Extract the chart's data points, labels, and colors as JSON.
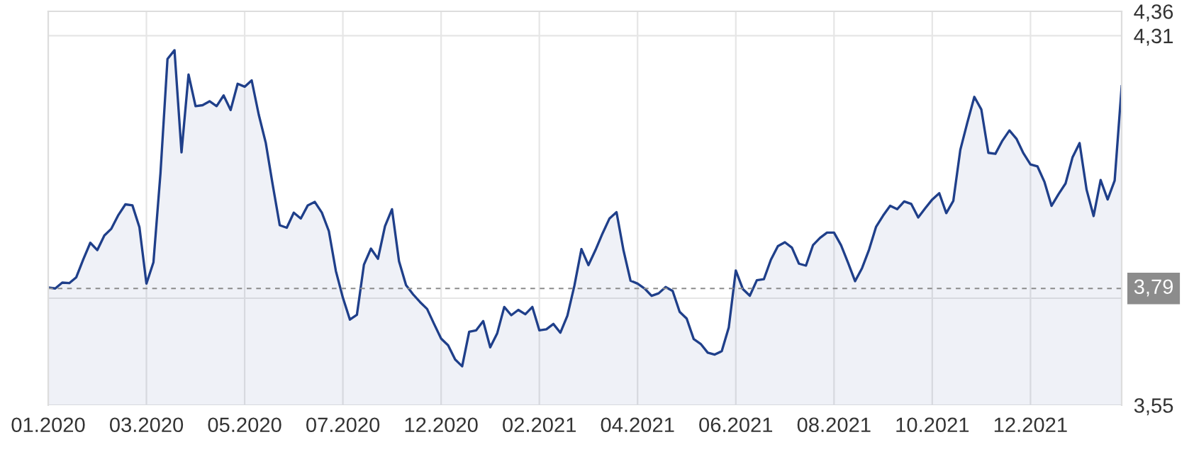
{
  "chart_data": {
    "type": "area",
    "categories": [
      "01.2020",
      null,
      null,
      null,
      null,
      null,
      null,
      null,
      null,
      null,
      null,
      null,
      null,
      null,
      "03.2020",
      null,
      null,
      null,
      null,
      null,
      null,
      null,
      null,
      null,
      null,
      null,
      null,
      null,
      "05.2020",
      null,
      null,
      null,
      null,
      null,
      null,
      null,
      null,
      null,
      null,
      null,
      null,
      null,
      "07.2020",
      null,
      null,
      null,
      null,
      null,
      null,
      null,
      null,
      null,
      null,
      null,
      null,
      null,
      "12.2020",
      null,
      null,
      null,
      null,
      null,
      null,
      null,
      null,
      null,
      null,
      null,
      null,
      null,
      "02.2021",
      null,
      null,
      null,
      null,
      null,
      null,
      null,
      null,
      null,
      null,
      null,
      null,
      null,
      "04.2021",
      null,
      null,
      null,
      null,
      null,
      null,
      null,
      null,
      null,
      null,
      null,
      null,
      null,
      "06.2021",
      null,
      null,
      null,
      null,
      null,
      null,
      null,
      null,
      null,
      null,
      null,
      null,
      null,
      "08.2021",
      null,
      null,
      null,
      null,
      null,
      null,
      null,
      null,
      null,
      null,
      null,
      null,
      null,
      "10.2021",
      null,
      null,
      null,
      null,
      null,
      null,
      null,
      null,
      null,
      null,
      null,
      null,
      null,
      "12.2021",
      null,
      null,
      null,
      null,
      null,
      null,
      null,
      null,
      null,
      null,
      null,
      null,
      null
    ],
    "series": [
      {
        "color": "#1f3f8a",
        "values": [
          3.792,
          3.79,
          3.802,
          3.801,
          3.813,
          3.85,
          3.884,
          3.869,
          3.899,
          3.913,
          3.941,
          3.963,
          3.961,
          3.916,
          3.8,
          3.844,
          4.027,
          4.262,
          4.28,
          4.07,
          4.23,
          4.165,
          4.167,
          4.175,
          4.165,
          4.187,
          4.157,
          4.211,
          4.205,
          4.218,
          4.148,
          4.09,
          4.003,
          3.92,
          3.915,
          3.946,
          3.934,
          3.961,
          3.968,
          3.946,
          3.908,
          3.826,
          3.771,
          3.726,
          3.736,
          3.839,
          3.872,
          3.851,
          3.918,
          3.953,
          3.846,
          3.797,
          3.778,
          3.762,
          3.748,
          3.717,
          3.687,
          3.673,
          3.644,
          3.63,
          3.701,
          3.704,
          3.723,
          3.669,
          3.698,
          3.752,
          3.735,
          3.746,
          3.737,
          3.752,
          3.704,
          3.706,
          3.717,
          3.699,
          3.734,
          3.796,
          3.871,
          3.838,
          3.869,
          3.903,
          3.934,
          3.947,
          3.868,
          3.806,
          3.8,
          3.79,
          3.775,
          3.78,
          3.793,
          3.785,
          3.742,
          3.728,
          3.686,
          3.676,
          3.658,
          3.654,
          3.661,
          3.71,
          3.827,
          3.789,
          3.775,
          3.807,
          3.809,
          3.849,
          3.877,
          3.885,
          3.874,
          3.841,
          3.837,
          3.879,
          3.894,
          3.905,
          3.905,
          3.879,
          3.843,
          3.805,
          3.832,
          3.87,
          3.917,
          3.94,
          3.96,
          3.953,
          3.969,
          3.964,
          3.936,
          3.955,
          3.973,
          3.986,
          3.945,
          3.97,
          4.075,
          4.131,
          4.184,
          4.158,
          4.069,
          4.067,
          4.094,
          4.115,
          4.098,
          4.068,
          4.045,
          4.041,
          4.009,
          3.96,
          3.984,
          4.006,
          4.06,
          4.089,
          3.993,
          3.939,
          4.013,
          3.973,
          4.012,
          4.206
        ]
      }
    ],
    "ylim": [
      3.55,
      4.36
    ],
    "yticks": [
      {
        "value": 3.55,
        "label": "3,55"
      },
      {
        "value": 3.77,
        "label": null
      },
      {
        "value": 4.31,
        "label": "4,31"
      },
      {
        "value": 4.36,
        "label": "4,36"
      }
    ],
    "ref_lines": [
      {
        "axis": "y",
        "value": 3.79,
        "label": "3,79",
        "color": "#8c8c8c",
        "line_style": "dashed"
      }
    ],
    "grid": true
  }
}
